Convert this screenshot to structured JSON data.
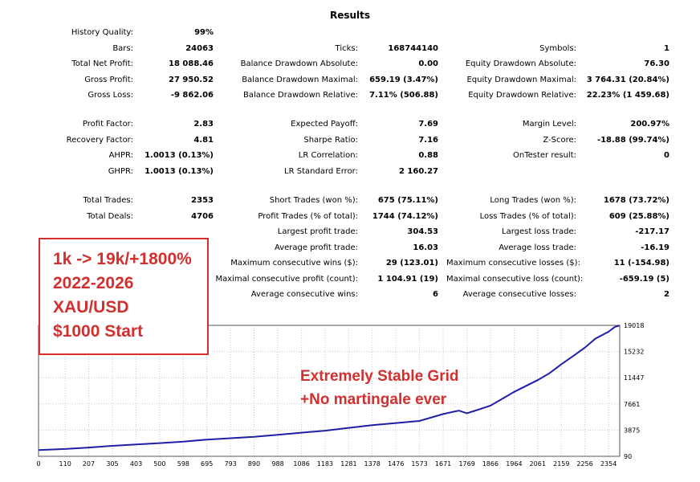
{
  "report": {
    "title": "Results",
    "history_quality_label": "History Quality:",
    "history_quality": "99%",
    "bars_label": "Bars:",
    "bars": "24063",
    "ticks_label": "Ticks:",
    "ticks": "168744140",
    "symbols_label": "Symbols:",
    "symbols": "1",
    "total_net_profit_label": "Total Net Profit:",
    "total_net_profit": "18 088.46",
    "balance_dd_abs_label": "Balance Drawdown Absolute:",
    "balance_dd_abs": "0.00",
    "equity_dd_abs_label": "Equity Drawdown Absolute:",
    "equity_dd_abs": "76.30",
    "gross_profit_label": "Gross Profit:",
    "gross_profit": "27 950.52",
    "balance_dd_max_label": "Balance Drawdown Maximal:",
    "balance_dd_max": "659.19 (3.47%)",
    "equity_dd_max_label": "Equity Drawdown Maximal:",
    "equity_dd_max": "3 764.31 (20.84%)",
    "gross_loss_label": "Gross Loss:",
    "gross_loss": "-9 862.06",
    "balance_dd_rel_label": "Balance Drawdown Relative:",
    "balance_dd_rel": "7.11% (506.88)",
    "equity_dd_rel_label": "Equity Drawdown Relative:",
    "equity_dd_rel": "22.23% (1 459.68)",
    "profit_factor_label": "Profit Factor:",
    "profit_factor": "2.83",
    "expected_payoff_label": "Expected Payoff:",
    "expected_payoff": "7.69",
    "margin_level_label": "Margin Level:",
    "margin_level": "200.97%",
    "recovery_factor_label": "Recovery Factor:",
    "recovery_factor": "4.81",
    "sharpe_label": "Sharpe Ratio:",
    "sharpe": "7.16",
    "zscore_label": "Z-Score:",
    "zscore": "-18.88 (99.74%)",
    "ahpr_label": "AHPR:",
    "ahpr": "1.0013 (0.13%)",
    "lr_corr_label": "LR Correlation:",
    "lr_corr": "0.88",
    "ontester_label": "OnTester result:",
    "ontester": "0",
    "ghpr_label": "GHPR:",
    "ghpr": "1.0013 (0.13%)",
    "lr_std_err_label": "LR Standard Error:",
    "lr_std_err": "2 160.27",
    "total_trades_label": "Total Trades:",
    "total_trades": "2353",
    "short_trades_label": "Short Trades (won %):",
    "short_trades": "675 (75.11%)",
    "long_trades_label": "Long Trades (won %):",
    "long_trades": "1678 (73.72%)",
    "total_deals_label": "Total Deals:",
    "total_deals": "4706",
    "profit_trades_label": "Profit Trades (% of total):",
    "profit_trades": "1744 (74.12%)",
    "loss_trades_label": "Loss Trades (% of total):",
    "loss_trades": "609 (25.88%)",
    "largest_profit_label": "Largest profit trade:",
    "largest_profit": "304.53",
    "largest_loss_label": "Largest loss trade:",
    "largest_loss": "-217.17",
    "avg_profit_label": "Average profit trade:",
    "avg_profit": "16.03",
    "avg_loss_label": "Average loss trade:",
    "avg_loss": "-16.19",
    "max_cons_wins_label": "Maximum consecutive wins ($):",
    "max_cons_wins": "29 (123.01)",
    "max_cons_losses_label": "Maximum consecutive losses ($):",
    "max_cons_losses": "11 (-154.98)",
    "maximal_cons_profit_label": "Maximal consecutive profit (count):",
    "maximal_cons_profit": "1 104.91 (19)",
    "maximal_cons_loss_label": "Maximal consecutive loss (count):",
    "maximal_cons_loss": "-659.19 (5)",
    "avg_cons_wins_label": "Average consecutive wins:",
    "avg_cons_wins": "6",
    "avg_cons_losses_label": "Average consecutive losses:",
    "avg_cons_losses": "2"
  },
  "annotation": {
    "line1": "1k -> 19k/+1800%",
    "line2": "2022-2026",
    "line3": "XAU/USD",
    "line4": "$1000 Start",
    "stable1": "Extremely Stable Grid",
    "stable2": "+No martingale ever",
    "color": "#d32f2f"
  },
  "chart_data": {
    "type": "line",
    "title": "",
    "xlabel": "",
    "ylabel": "",
    "x_ticks": [
      "0",
      "110",
      "207",
      "305",
      "403",
      "500",
      "598",
      "695",
      "793",
      "890",
      "988",
      "1086",
      "1183",
      "1281",
      "1378",
      "1476",
      "1573",
      "1671",
      "1769",
      "1866",
      "1964",
      "2061",
      "2159",
      "2256",
      "2354"
    ],
    "y_ticks": [
      "90",
      "3875",
      "7661",
      "11447",
      "15232",
      "19018"
    ],
    "ylim": [
      90,
      19018
    ],
    "xlim": [
      0,
      2400
    ],
    "grid": true,
    "line_color": "#1f1fa8",
    "series": [
      {
        "x": [
          0,
          110,
          207,
          305,
          403,
          500,
          598,
          695,
          793,
          890,
          988,
          1086,
          1183,
          1281,
          1378,
          1476,
          1573,
          1671,
          1735,
          1769,
          1800,
          1866,
          1964,
          2061,
          2110,
          2159,
          2200,
          2256,
          2300,
          2354,
          2380,
          2400
        ],
        "values": [
          1000,
          1150,
          1350,
          1600,
          1800,
          2000,
          2200,
          2500,
          2700,
          2900,
          3200,
          3500,
          3800,
          4200,
          4600,
          4900,
          5200,
          6200,
          6700,
          6300,
          6650,
          7400,
          9400,
          11100,
          12100,
          13400,
          14400,
          15800,
          17100,
          18100,
          18800,
          19000
        ]
      }
    ]
  }
}
